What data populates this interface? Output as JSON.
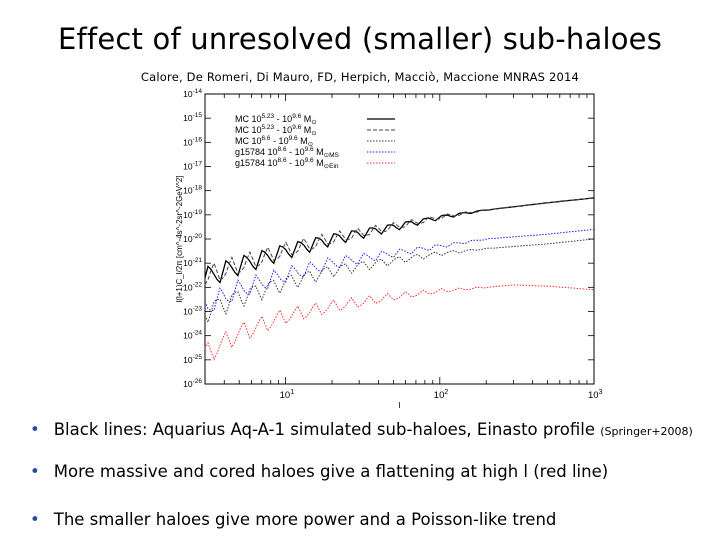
{
  "slide": {
    "title": "Effect of unresolved (smaller) sub-haloes",
    "citation": "Calore, De Romeri, Di Mauro, FD, Herpich, Macciò, Maccione MNRAS 2014"
  },
  "bullets": [
    {
      "text": "Black lines: Aquarius Aq-A-1 simulated sub-haloes, Einasto profile",
      "note": "(Springer+2008)"
    },
    {
      "text": "More massive and cored haloes give a flattening at high l (red line)",
      "note": ""
    },
    {
      "text": "The smaller haloes give more power and a Poisson-like trend",
      "note": ""
    }
  ],
  "chart_data": {
    "type": "line",
    "xlabel": "l",
    "ylabel": "l(l+1)C_l/2π [cm^-4s^-2sr^-2GeV^2]",
    "xscale": "log",
    "yscale": "log",
    "xlim": [
      3,
      1000
    ],
    "ylim": [
      1e-26,
      1e-14
    ],
    "x_ticks": [
      {
        "base": "10",
        "exp": "1"
      },
      {
        "base": "10",
        "exp": "2"
      },
      {
        "base": "10",
        "exp": "3"
      }
    ],
    "y_ticks": [
      "-14",
      "-15",
      "-16",
      "-17",
      "-18",
      "-19",
      "-20",
      "-21",
      "-22",
      "-23",
      "-24",
      "-25",
      "-26"
    ],
    "legend": {
      "placement": "top-left"
    },
    "series": [
      {
        "name": "MC 10^5.23 - 10^9.6 M_⊙",
        "label_parts": {
          "prefix": "MC 10",
          "sup1": "5.23",
          "mid": " - 10",
          "sup2": "9.6",
          "unit": " M",
          "sub": "⊙"
        },
        "color": "#000000",
        "style": "solid",
        "x": [
          3,
          5,
          10,
          20,
          50,
          100,
          200,
          500,
          1000
        ],
        "y": [
          -21.6,
          -21.1,
          -20.5,
          -20.0,
          -19.5,
          -19.1,
          -18.8,
          -18.5,
          -18.3
        ]
      },
      {
        "name": "MC 10^5.23 - 10^9.6 M_⊙",
        "label_parts": {
          "prefix": "MC 10",
          "sup1": "5.23",
          "mid": " - 10",
          "sup2": "9.6",
          "unit": " M",
          "sub": "⊙"
        },
        "color": "#444444",
        "style": "dashed",
        "x": [
          3,
          5,
          10,
          20,
          50,
          100,
          200,
          500,
          1000
        ],
        "y": [
          -21.6,
          -21.1,
          -20.5,
          -20.0,
          -19.5,
          -19.1,
          -18.8,
          -18.5,
          -18.3
        ]
      },
      {
        "name": "MC 10^6.6 - 10^9.6 M_⊙",
        "label_parts": {
          "prefix": "MC 10",
          "sup1": "6.6",
          "mid": " - 10",
          "sup2": "9.6",
          "unit": " M",
          "sub": "⊙"
        },
        "color": "#333333",
        "style": "dotted",
        "x": [
          3,
          5,
          10,
          20,
          50,
          100,
          200,
          500,
          1000
        ],
        "y": [
          -23.0,
          -22.4,
          -21.8,
          -21.3,
          -20.9,
          -20.6,
          -20.4,
          -20.2,
          -20.0
        ]
      },
      {
        "name": "g15784 10^8.6 - 10^9.6 M_⊙MS",
        "label_parts": {
          "prefix": "g15784 10",
          "sup1": "8.6",
          "mid": " - 10",
          "sup2": "9.6",
          "unit": " M",
          "sub": "⊙MS"
        },
        "color": "#1a1aff",
        "style": "dotted",
        "x": [
          3,
          5,
          10,
          20,
          50,
          100,
          200,
          500,
          1000
        ],
        "y": [
          -22.8,
          -22.1,
          -21.5,
          -21.0,
          -20.6,
          -20.3,
          -20.0,
          -19.8,
          -19.6
        ]
      },
      {
        "name": "g15784 10^8.6 - 10^9.6 M_⊙Ein",
        "label_parts": {
          "prefix": "g15784 10",
          "sup1": "8.6",
          "mid": " - 10",
          "sup2": "9.6",
          "unit": " M",
          "sub": "⊙Ein"
        },
        "color": "#ff2a2a",
        "style": "dotted",
        "x": [
          3,
          5,
          10,
          20,
          50,
          100,
          200,
          300,
          500,
          1000
        ],
        "y": [
          -24.8,
          -23.9,
          -23.2,
          -22.8,
          -22.4,
          -22.15,
          -22.0,
          -21.9,
          -21.95,
          -22.1
        ]
      }
    ]
  }
}
